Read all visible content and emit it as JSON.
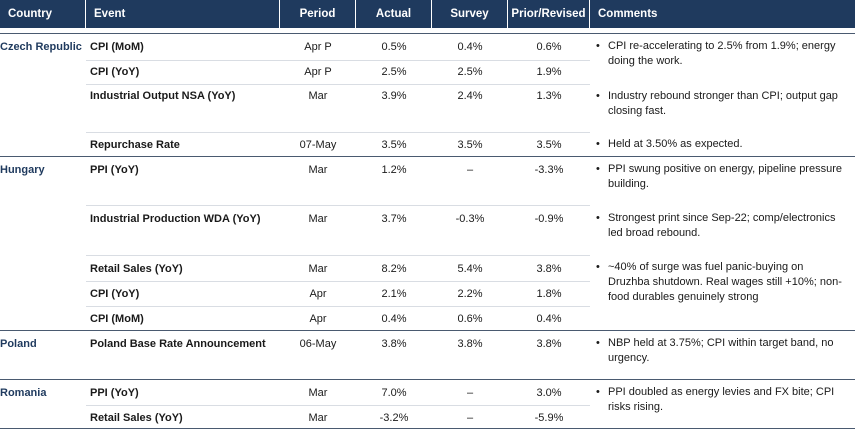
{
  "headers": {
    "country": "Country",
    "event": "Event",
    "period": "Period",
    "actual": "Actual",
    "survey": "Survey",
    "prior": "Prior/Revised",
    "comments": "Comments"
  },
  "bullet_glyph": "•",
  "groups": [
    {
      "country": "Czech Republic",
      "rows": [
        {
          "event": "CPI (MoM)",
          "period": "Apr P",
          "actual": "0.5%",
          "survey": "0.4%",
          "prior": "0.6%"
        },
        {
          "event": "CPI (YoY)",
          "period": "Apr P",
          "actual": "2.5%",
          "survey": "2.5%",
          "prior": "1.9%"
        },
        {
          "event": "Industrial Output NSA (YoY)",
          "period": "Mar",
          "actual": "3.9%",
          "survey": "2.4%",
          "prior": "1.3%"
        },
        {
          "event": "Repurchase Rate",
          "period": "07-May",
          "actual": "3.5%",
          "survey": "3.5%",
          "prior": "3.5%"
        }
      ],
      "comments": [
        "CPI re-accelerating to 2.5% from 1.9%; energy doing the work.",
        "Industry rebound stronger than CPI; output gap closing fast.",
        "Held at 3.50% as expected."
      ]
    },
    {
      "country": "Hungary",
      "rows": [
        {
          "event": "PPI (YoY)",
          "period": "Mar",
          "actual": "1.2%",
          "survey": "–",
          "prior": "-3.3%"
        },
        {
          "event": "Industrial Production WDA (YoY)",
          "period": "Mar",
          "actual": "3.7%",
          "survey": "-0.3%",
          "prior": "-0.9%"
        },
        {
          "event": "Retail Sales (YoY)",
          "period": "Mar",
          "actual": "8.2%",
          "survey": "5.4%",
          "prior": "3.8%"
        },
        {
          "event": "CPI (YoY)",
          "period": "Apr",
          "actual": "2.1%",
          "survey": "2.2%",
          "prior": "1.8%"
        },
        {
          "event": "CPI (MoM)",
          "period": "Apr",
          "actual": "0.4%",
          "survey": "0.6%",
          "prior": "0.4%"
        }
      ],
      "comments": [
        "PPI swung positive on energy, pipeline pressure building.",
        "Strongest print since Sep-22; comp/electronics led broad rebound.",
        "~40% of surge was fuel panic-buying on Druzhba shutdown. Real wages still +10%; non-food durables genuinely strong"
      ]
    },
    {
      "country": "Poland",
      "rows": [
        {
          "event": "Poland Base Rate Announcement",
          "period": "06-May",
          "actual": "3.8%",
          "survey": "3.8%",
          "prior": "3.8%"
        }
      ],
      "comments": [
        "NBP held at 3.75%; CPI within target band, no urgency."
      ]
    },
    {
      "country": "Romania",
      "rows": [
        {
          "event": "PPI (YoY)",
          "period": "Mar",
          "actual": "7.0%",
          "survey": "–",
          "prior": "3.0%"
        },
        {
          "event": "Retail Sales (YoY)",
          "period": "Mar",
          "actual": "-3.2%",
          "survey": "–",
          "prior": "-5.9%"
        }
      ],
      "comments": [
        "PPI doubled as energy levies and FX bite; CPI risks rising."
      ]
    }
  ]
}
